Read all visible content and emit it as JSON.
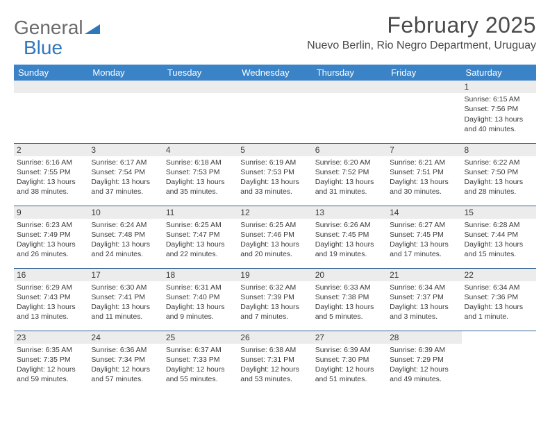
{
  "logo": {
    "part1": "General",
    "part2": "Blue"
  },
  "title": "February 2025",
  "location": "Nuevo Berlin, Rio Negro Department, Uruguay",
  "colors": {
    "header_bg": "#3a83c7",
    "header_text": "#ffffff",
    "daynum_bg": "#ececec",
    "row_divider": "#2f5f8f",
    "body_text": "#3a3a3a",
    "logo_gray": "#6a6a6a",
    "logo_blue": "#2f77bd",
    "page_bg": "#ffffff"
  },
  "weekdays": [
    "Sunday",
    "Monday",
    "Tuesday",
    "Wednesday",
    "Thursday",
    "Friday",
    "Saturday"
  ],
  "weeks": [
    [
      null,
      null,
      null,
      null,
      null,
      null,
      {
        "day": "1",
        "sunrise": "Sunrise: 6:15 AM",
        "sunset": "Sunset: 7:56 PM",
        "daylight": "Daylight: 13 hours and 40 minutes."
      }
    ],
    [
      {
        "day": "2",
        "sunrise": "Sunrise: 6:16 AM",
        "sunset": "Sunset: 7:55 PM",
        "daylight": "Daylight: 13 hours and 38 minutes."
      },
      {
        "day": "3",
        "sunrise": "Sunrise: 6:17 AM",
        "sunset": "Sunset: 7:54 PM",
        "daylight": "Daylight: 13 hours and 37 minutes."
      },
      {
        "day": "4",
        "sunrise": "Sunrise: 6:18 AM",
        "sunset": "Sunset: 7:53 PM",
        "daylight": "Daylight: 13 hours and 35 minutes."
      },
      {
        "day": "5",
        "sunrise": "Sunrise: 6:19 AM",
        "sunset": "Sunset: 7:53 PM",
        "daylight": "Daylight: 13 hours and 33 minutes."
      },
      {
        "day": "6",
        "sunrise": "Sunrise: 6:20 AM",
        "sunset": "Sunset: 7:52 PM",
        "daylight": "Daylight: 13 hours and 31 minutes."
      },
      {
        "day": "7",
        "sunrise": "Sunrise: 6:21 AM",
        "sunset": "Sunset: 7:51 PM",
        "daylight": "Daylight: 13 hours and 30 minutes."
      },
      {
        "day": "8",
        "sunrise": "Sunrise: 6:22 AM",
        "sunset": "Sunset: 7:50 PM",
        "daylight": "Daylight: 13 hours and 28 minutes."
      }
    ],
    [
      {
        "day": "9",
        "sunrise": "Sunrise: 6:23 AM",
        "sunset": "Sunset: 7:49 PM",
        "daylight": "Daylight: 13 hours and 26 minutes."
      },
      {
        "day": "10",
        "sunrise": "Sunrise: 6:24 AM",
        "sunset": "Sunset: 7:48 PM",
        "daylight": "Daylight: 13 hours and 24 minutes."
      },
      {
        "day": "11",
        "sunrise": "Sunrise: 6:25 AM",
        "sunset": "Sunset: 7:47 PM",
        "daylight": "Daylight: 13 hours and 22 minutes."
      },
      {
        "day": "12",
        "sunrise": "Sunrise: 6:25 AM",
        "sunset": "Sunset: 7:46 PM",
        "daylight": "Daylight: 13 hours and 20 minutes."
      },
      {
        "day": "13",
        "sunrise": "Sunrise: 6:26 AM",
        "sunset": "Sunset: 7:45 PM",
        "daylight": "Daylight: 13 hours and 19 minutes."
      },
      {
        "day": "14",
        "sunrise": "Sunrise: 6:27 AM",
        "sunset": "Sunset: 7:45 PM",
        "daylight": "Daylight: 13 hours and 17 minutes."
      },
      {
        "day": "15",
        "sunrise": "Sunrise: 6:28 AM",
        "sunset": "Sunset: 7:44 PM",
        "daylight": "Daylight: 13 hours and 15 minutes."
      }
    ],
    [
      {
        "day": "16",
        "sunrise": "Sunrise: 6:29 AM",
        "sunset": "Sunset: 7:43 PM",
        "daylight": "Daylight: 13 hours and 13 minutes."
      },
      {
        "day": "17",
        "sunrise": "Sunrise: 6:30 AM",
        "sunset": "Sunset: 7:41 PM",
        "daylight": "Daylight: 13 hours and 11 minutes."
      },
      {
        "day": "18",
        "sunrise": "Sunrise: 6:31 AM",
        "sunset": "Sunset: 7:40 PM",
        "daylight": "Daylight: 13 hours and 9 minutes."
      },
      {
        "day": "19",
        "sunrise": "Sunrise: 6:32 AM",
        "sunset": "Sunset: 7:39 PM",
        "daylight": "Daylight: 13 hours and 7 minutes."
      },
      {
        "day": "20",
        "sunrise": "Sunrise: 6:33 AM",
        "sunset": "Sunset: 7:38 PM",
        "daylight": "Daylight: 13 hours and 5 minutes."
      },
      {
        "day": "21",
        "sunrise": "Sunrise: 6:34 AM",
        "sunset": "Sunset: 7:37 PM",
        "daylight": "Daylight: 13 hours and 3 minutes."
      },
      {
        "day": "22",
        "sunrise": "Sunrise: 6:34 AM",
        "sunset": "Sunset: 7:36 PM",
        "daylight": "Daylight: 13 hours and 1 minute."
      }
    ],
    [
      {
        "day": "23",
        "sunrise": "Sunrise: 6:35 AM",
        "sunset": "Sunset: 7:35 PM",
        "daylight": "Daylight: 12 hours and 59 minutes."
      },
      {
        "day": "24",
        "sunrise": "Sunrise: 6:36 AM",
        "sunset": "Sunset: 7:34 PM",
        "daylight": "Daylight: 12 hours and 57 minutes."
      },
      {
        "day": "25",
        "sunrise": "Sunrise: 6:37 AM",
        "sunset": "Sunset: 7:33 PM",
        "daylight": "Daylight: 12 hours and 55 minutes."
      },
      {
        "day": "26",
        "sunrise": "Sunrise: 6:38 AM",
        "sunset": "Sunset: 7:31 PM",
        "daylight": "Daylight: 12 hours and 53 minutes."
      },
      {
        "day": "27",
        "sunrise": "Sunrise: 6:39 AM",
        "sunset": "Sunset: 7:30 PM",
        "daylight": "Daylight: 12 hours and 51 minutes."
      },
      {
        "day": "28",
        "sunrise": "Sunrise: 6:39 AM",
        "sunset": "Sunset: 7:29 PM",
        "daylight": "Daylight: 12 hours and 49 minutes."
      },
      null
    ]
  ]
}
